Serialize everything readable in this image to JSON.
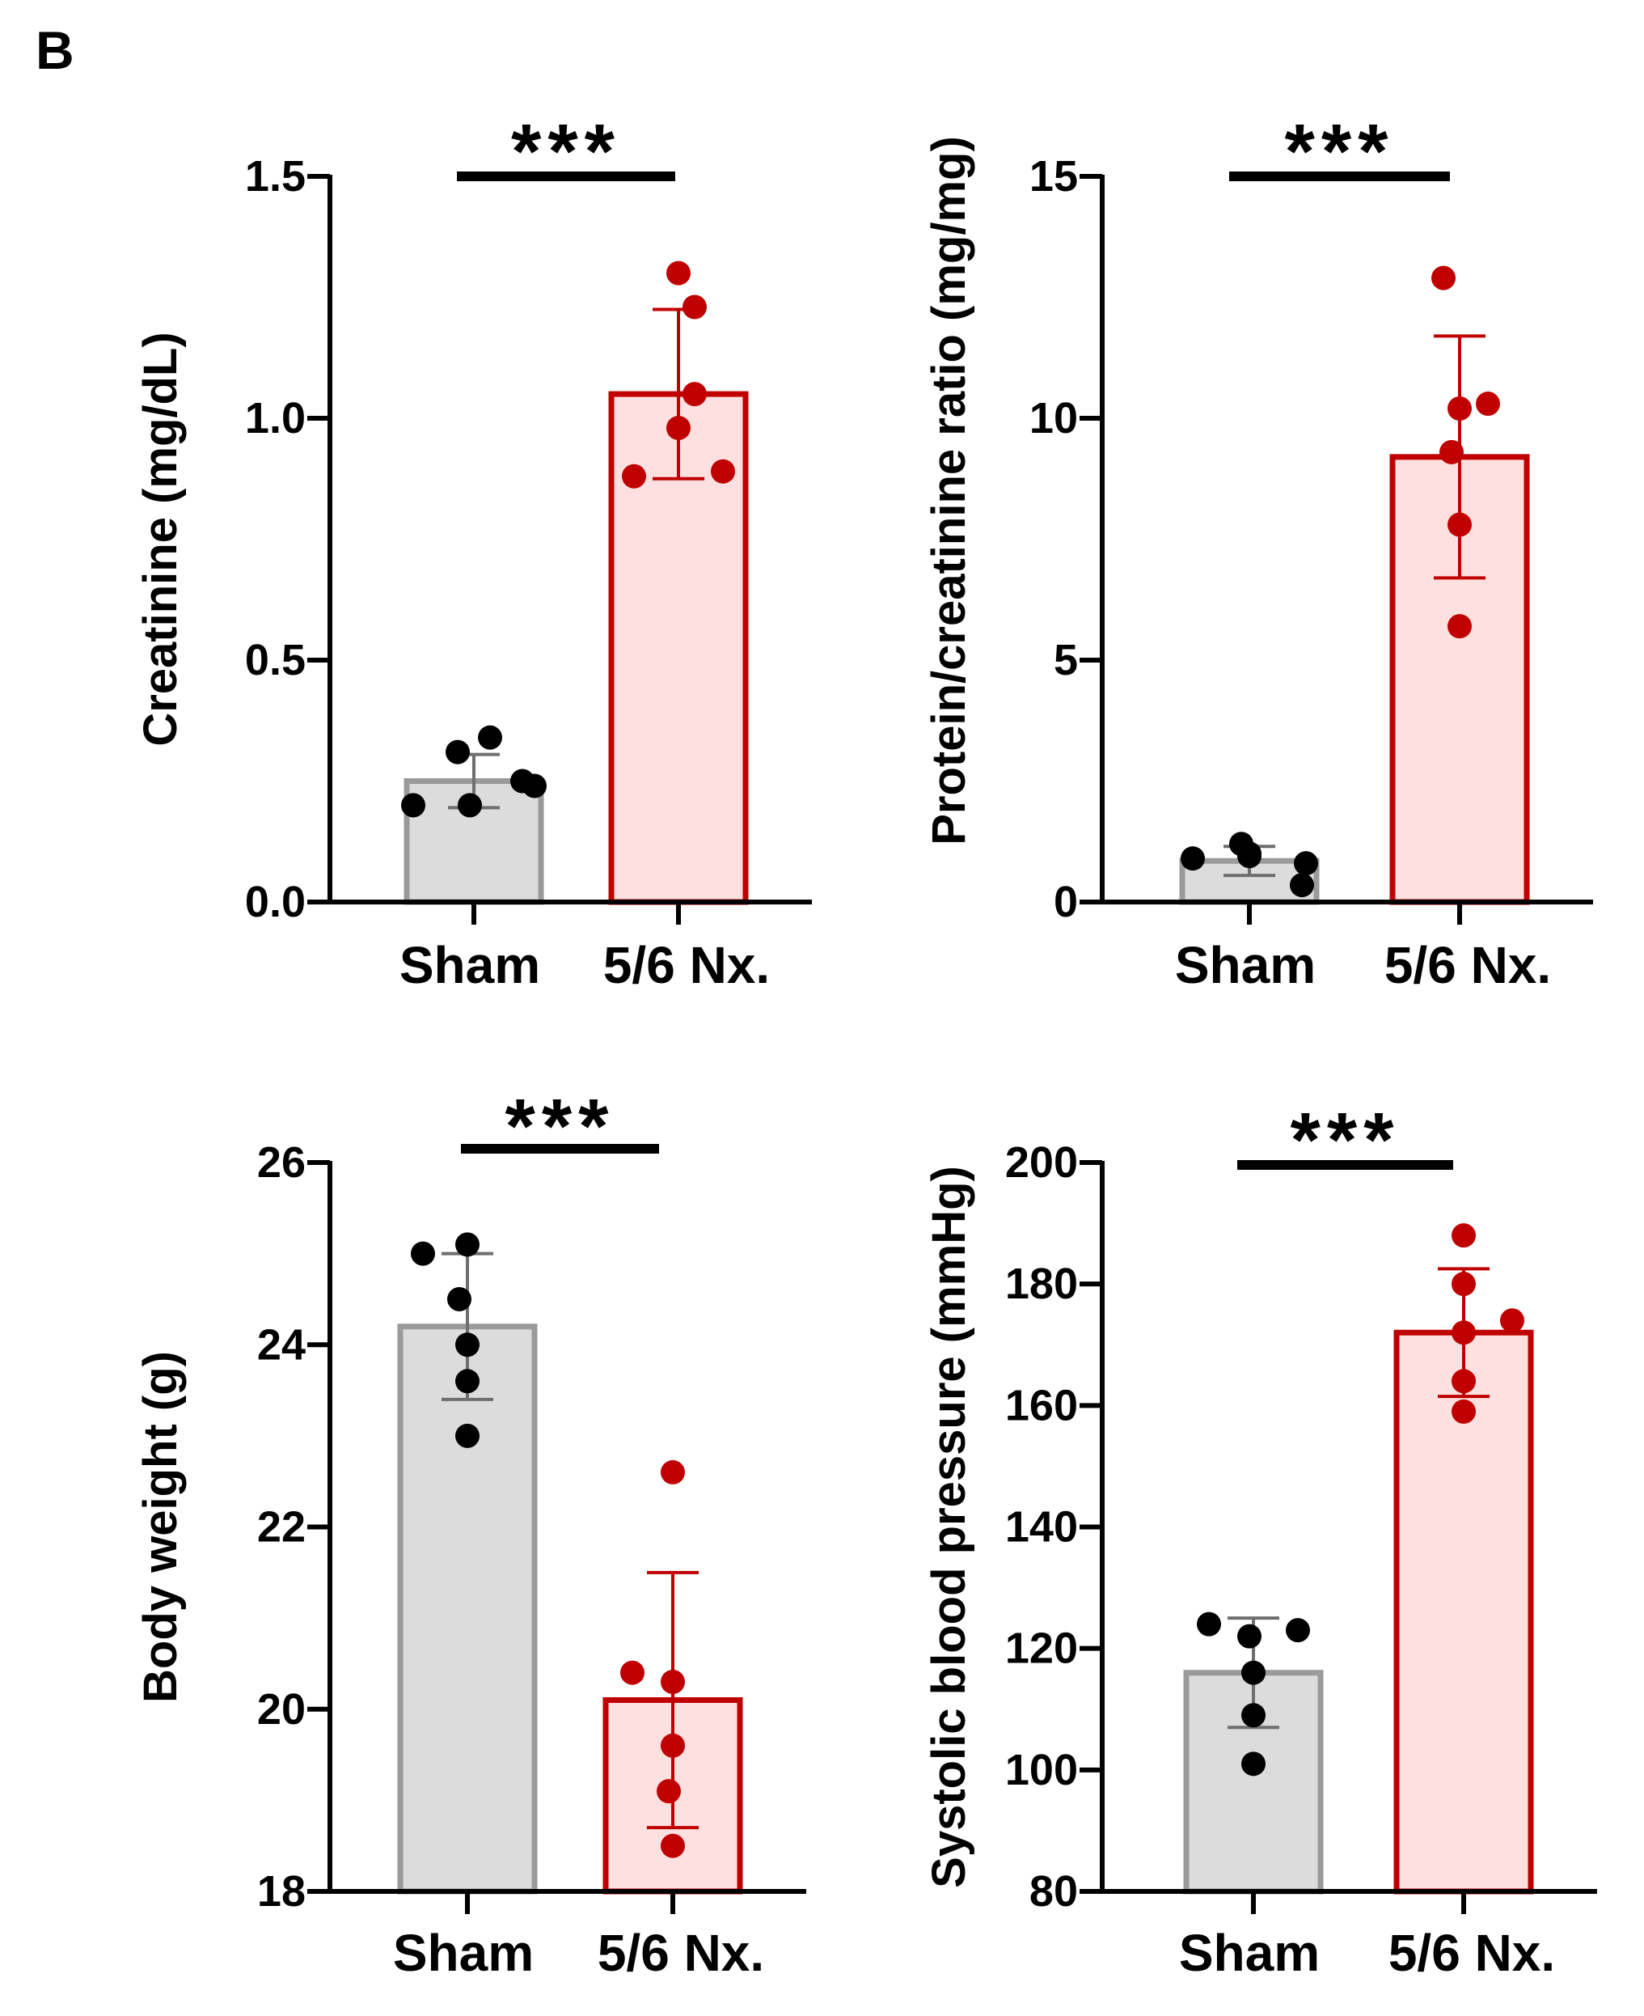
{
  "figure": {
    "panel_label": "B"
  },
  "colors": {
    "sham_fill": "#dcdcdc",
    "sham_edge": "#9a9a9a",
    "sham_points": "#000000",
    "nx_fill": "#ffe0e0",
    "nx_edge": "#c00000",
    "nx_points": "#c00000",
    "axis": "#000000"
  },
  "chart_data": [
    {
      "type": "bar",
      "ylabel": "Creatinine (mg/dL)",
      "categories": [
        "Sham",
        "5/6 Nx."
      ],
      "ylim": [
        0,
        1.5
      ],
      "yticks": [
        "0.0",
        "0.5",
        "1.0",
        "1.5"
      ],
      "ytick_values": [
        0,
        0.5,
        1.0,
        1.5
      ],
      "significance": "***",
      "series": [
        {
          "category": "Sham",
          "mean": 0.25,
          "sd": 0.055,
          "points": [
            0.2,
            0.25,
            0.2,
            0.24,
            0.31,
            0.34
          ]
        },
        {
          "category": "5/6 Nx.",
          "mean": 1.05,
          "sd": 0.175,
          "points": [
            0.88,
            0.89,
            0.98,
            1.05,
            1.23,
            1.3
          ]
        }
      ]
    },
    {
      "type": "bar",
      "ylabel": "Protein/creatinine ratio (mg/mg)",
      "categories": [
        "Sham",
        "5/6 Nx."
      ],
      "ylim": [
        0,
        15
      ],
      "yticks": [
        "0",
        "5",
        "10",
        "15"
      ],
      "ytick_values": [
        0,
        5,
        10,
        15
      ],
      "significance": "***",
      "series": [
        {
          "category": "Sham",
          "mean": 0.85,
          "sd": 0.3,
          "points": [
            0.9,
            0.35,
            1.0,
            0.8,
            1.2,
            0.95
          ]
        },
        {
          "category": "5/6 Nx.",
          "mean": 9.2,
          "sd": 2.5,
          "points": [
            5.7,
            7.8,
            9.3,
            10.2,
            10.3,
            12.9
          ]
        }
      ]
    },
    {
      "type": "bar",
      "ylabel": "Body weight (g)",
      "categories": [
        "Sham",
        "5/6 Nx."
      ],
      "ylim": [
        18,
        26
      ],
      "yticks": [
        "18",
        "20",
        "22",
        "24",
        "26"
      ],
      "ytick_values": [
        18,
        20,
        22,
        24,
        26
      ],
      "significance": "***",
      "series": [
        {
          "category": "Sham",
          "mean": 24.2,
          "sd": 0.8,
          "points": [
            23.0,
            23.6,
            24.0,
            24.5,
            25.0,
            25.1
          ]
        },
        {
          "category": "5/6 Nx.",
          "mean": 20.1,
          "sd": 1.4,
          "points": [
            18.5,
            19.1,
            19.6,
            20.3,
            20.4,
            22.6
          ]
        }
      ]
    },
    {
      "type": "bar",
      "ylabel": "Systolic blood pressure (mmHg)",
      "categories": [
        "Sham",
        "5/6 Nx."
      ],
      "ylim": [
        80,
        200
      ],
      "yticks": [
        "80",
        "100",
        "120",
        "140",
        "160",
        "180",
        "200"
      ],
      "ytick_values": [
        80,
        100,
        120,
        140,
        160,
        180,
        200
      ],
      "significance": "***",
      "series": [
        {
          "category": "Sham",
          "mean": 116,
          "sd": 9,
          "points": [
            101,
            109,
            116,
            122,
            123,
            124
          ]
        },
        {
          "category": "5/6 Nx.",
          "mean": 172,
          "sd": 10.5,
          "points": [
            159,
            164,
            172,
            174,
            180,
            188
          ]
        }
      ]
    }
  ]
}
